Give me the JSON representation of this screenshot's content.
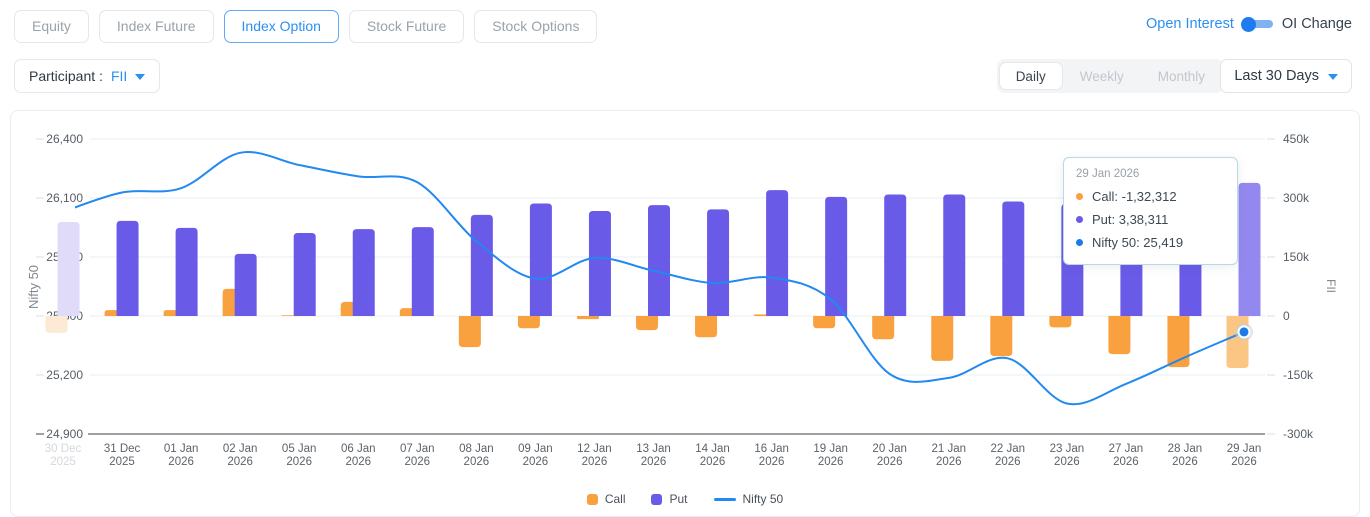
{
  "header": {
    "tabs": [
      {
        "label": "Equity",
        "active": false
      },
      {
        "label": "Index Future",
        "active": false
      },
      {
        "label": "Index Option",
        "active": true
      },
      {
        "label": "Stock Future",
        "active": false
      },
      {
        "label": "Stock Options",
        "active": false
      }
    ],
    "oi_toggle": {
      "left": "Open Interest",
      "right": "OI Change",
      "knob_position": "left"
    },
    "participant": {
      "label": "Participant :",
      "value": "FII"
    },
    "period_tabs": {
      "options": [
        "Daily",
        "Weekly",
        "Monthly"
      ],
      "selected": "Daily"
    },
    "range_dropdown": {
      "value": "Last 30 Days"
    }
  },
  "chart_data": {
    "type": "bar",
    "subtype": "combo-bar-line",
    "categories": [
      [
        "30 Dec",
        "2025"
      ],
      [
        "31 Dec",
        "2025"
      ],
      [
        "01 Jan",
        "2026"
      ],
      [
        "02 Jan",
        "2026"
      ],
      [
        "05 Jan",
        "2026"
      ],
      [
        "06 Jan",
        "2026"
      ],
      [
        "07 Jan",
        "2026"
      ],
      [
        "08 Jan",
        "2026"
      ],
      [
        "09 Jan",
        "2026"
      ],
      [
        "12 Jan",
        "2026"
      ],
      [
        "13 Jan",
        "2026"
      ],
      [
        "14 Jan",
        "2026"
      ],
      [
        "16 Jan",
        "2026"
      ],
      [
        "19 Jan",
        "2026"
      ],
      [
        "20 Jan",
        "2026"
      ],
      [
        "21 Jan",
        "2026"
      ],
      [
        "22 Jan",
        "2026"
      ],
      [
        "23 Jan",
        "2026"
      ],
      [
        "27 Jan",
        "2026"
      ],
      [
        "28 Jan",
        "2026"
      ],
      [
        "29 Jan",
        "2026"
      ]
    ],
    "series": [
      {
        "name": "Call",
        "type": "bar",
        "axis": "right",
        "color": "#f9a03f",
        "color_faded": "#fdead4",
        "color_highlight": "#fbc584",
        "values": [
          -43000,
          15000,
          15000,
          69000,
          2000,
          36000,
          20000,
          -79000,
          -31000,
          -8000,
          -36000,
          -54000,
          4000,
          -31000,
          -59000,
          -114000,
          -102000,
          -29000,
          -97000,
          -130000,
          -132312
        ]
      },
      {
        "name": "Put",
        "type": "bar",
        "axis": "right",
        "color": "#6a5ae8",
        "color_faded": "#dfdbf9",
        "color_highlight": "#9388f0",
        "values": [
          239000,
          242000,
          224000,
          158000,
          211000,
          221000,
          226000,
          257000,
          286000,
          267000,
          282000,
          271000,
          320000,
          303000,
          309000,
          309000,
          291000,
          285000,
          255000,
          275000,
          338311
        ]
      },
      {
        "name": "Nifty 50",
        "type": "line",
        "axis": "left",
        "color": "#2189f0",
        "values": [
          26030,
          26128,
          26150,
          26330,
          26268,
          26210,
          26180,
          25880,
          25690,
          25795,
          25730,
          25668,
          25695,
          25585,
          25205,
          25185,
          25285,
          25055,
          25155,
          25290,
          25419
        ]
      }
    ],
    "left_axis": {
      "title": "Nifty 50",
      "min": 24900,
      "max": 26400,
      "tick_step": 300,
      "ticks": [
        "26,400",
        "26,100",
        "25,800",
        "25,500",
        "25,200",
        "24,900"
      ]
    },
    "right_axis": {
      "title": "FII",
      "min": -300000,
      "max": 450000,
      "tick_step": 150000,
      "ticks": [
        "450k",
        "300k",
        "150k",
        "0",
        "-150k",
        "-300k"
      ]
    },
    "faded_index": 0,
    "highlight_index": 20,
    "marker_index": 20,
    "grid": true,
    "legend_position": "bottom"
  },
  "tooltip": {
    "date": "29 Jan 2026",
    "rows": [
      {
        "text": "Call: -1,32,312",
        "color": "#f9a03f"
      },
      {
        "text": "Put: 3,38,311",
        "color": "#6a5ae8"
      },
      {
        "text": "Nifty 50: 25,419",
        "color": "#1b7ce8"
      }
    ]
  }
}
